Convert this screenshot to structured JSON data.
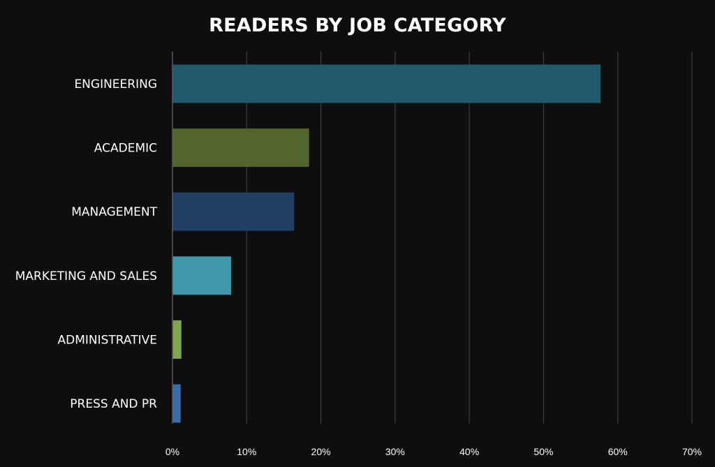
{
  "chart_data": {
    "type": "bar",
    "orientation": "horizontal",
    "title": "READERS BY JOB CATEGORY",
    "xlabel": "",
    "ylabel": "",
    "categories": [
      "ENGINEERING",
      "ACADEMIC",
      "MANAGEMENT",
      "MARKETING AND SALES",
      "ADMINISTRATIVE",
      "PRESS AND PR"
    ],
    "values": [
      57.7,
      18.4,
      16.4,
      7.9,
      1.2,
      1.1
    ],
    "value_unit": "%",
    "xlim": [
      0,
      70
    ],
    "x_ticks": [
      "0%",
      "10%",
      "20%",
      "30%",
      "40%",
      "50%",
      "60%",
      "70%"
    ],
    "bar_colors": [
      "#215a6b",
      "#51652c",
      "#213f63",
      "#3f97a9",
      "#82a54d",
      "#3d6da8"
    ],
    "grid": "vertical",
    "legend": "none"
  },
  "colors": {
    "background": "#0e0e0f",
    "gridline": "#3d3d3d",
    "text": "#ffffff"
  }
}
